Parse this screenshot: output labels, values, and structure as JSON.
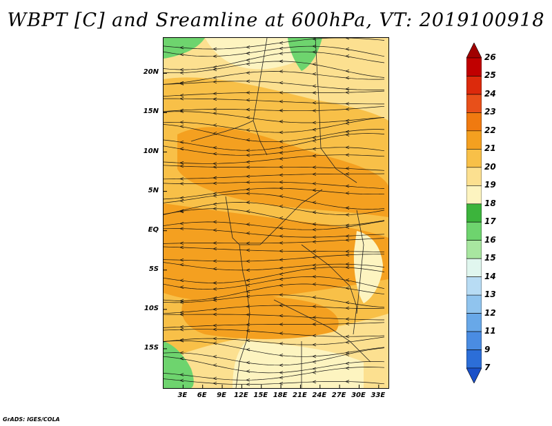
{
  "title": "WBPT [C] and Sreamline at 600hPa, VT: 2019100918",
  "credit": "GrADS: IGES/COLA",
  "map": {
    "lat_labels": [
      "20N",
      "15N",
      "10N",
      "5N",
      "EQ",
      "5S",
      "10S",
      "15S"
    ],
    "lat_values": [
      20,
      15,
      10,
      5,
      0,
      -5,
      -10,
      -15
    ],
    "lon_labels": [
      "3E",
      "6E",
      "9E",
      "12E",
      "15E",
      "18E",
      "21E",
      "24E",
      "27E",
      "30E",
      "33E"
    ],
    "lon_values": [
      3,
      6,
      9,
      12,
      15,
      18,
      21,
      24,
      27,
      30,
      33
    ],
    "lat_range": [
      -20,
      24.5
    ],
    "lon_range": [
      0,
      34.5
    ]
  },
  "colorbar": {
    "labels": [
      "26",
      "25",
      "24",
      "23",
      "22",
      "21",
      "20",
      "19",
      "18",
      "17",
      "16",
      "15",
      "14",
      "13",
      "12",
      "11",
      "9",
      "7"
    ],
    "colors": [
      "#a00000",
      "#c00000",
      "#dc2a0c",
      "#e8501a",
      "#f07a10",
      "#f4a020",
      "#f8c048",
      "#fce090",
      "#fdf4c0",
      "#3cb43c",
      "#6ed46e",
      "#a8e6a0",
      "#e0f6ee",
      "#b8dcf4",
      "#90c4ee",
      "#68a8e8",
      "#4a8ce2",
      "#2c6ed8",
      "#1a50c8"
    ]
  },
  "palette": {
    "hot": "#f4a020",
    "warm": "#f8c048",
    "mild": "#fce090",
    "cool": "#fdf4c0",
    "green": "#6ed46e"
  }
}
